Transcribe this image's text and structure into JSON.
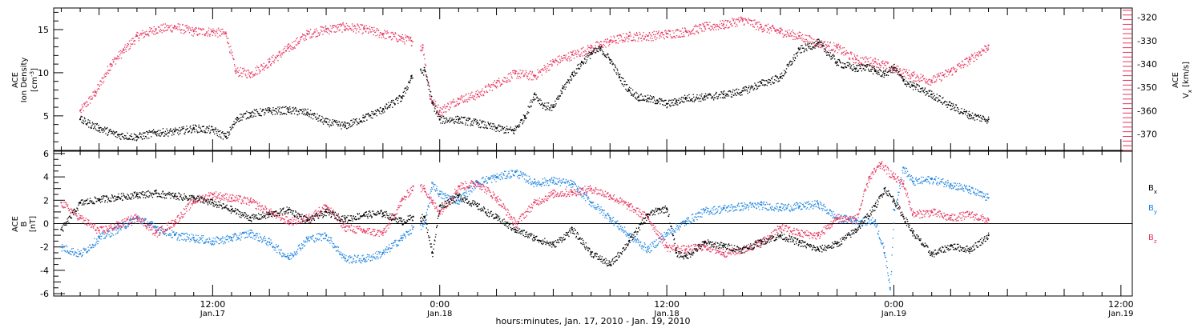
{
  "colors": {
    "black": "#000000",
    "red": "#e8345e",
    "blue": "#1f84e0",
    "axis": "#000000"
  },
  "chart_data": [
    {
      "type": "scatter",
      "panel": "top",
      "ylabel_left": [
        "ACE",
        "Ion Density",
        "[cm⁻³]"
      ],
      "ylabel_right": [
        "ACE",
        "Vₓ [km/s]"
      ],
      "yticks_left": [
        "5",
        "10",
        "15"
      ],
      "ylim_left": [
        1.0,
        17.5
      ],
      "yticks_right": [
        "-320",
        "-330",
        "-340",
        "-350",
        "-360",
        "-370"
      ],
      "ylim_right": [
        -377,
        -316
      ],
      "x_unit": "hours since 2010-01-17 00:00",
      "series": [
        {
          "color": "black",
          "axis": "left",
          "x": [
            5.0,
            6.0,
            7.0,
            8.0,
            9.0,
            10.0,
            11.0,
            12.0,
            12.7,
            13.3,
            14.0,
            15.0,
            16.0,
            17.0,
            18.0,
            19.0,
            20.0,
            21.0,
            22.0,
            22.5,
            23.2,
            23.6,
            24.0,
            25.0,
            26.0,
            27.0,
            27.9,
            28.5,
            29.0,
            29.5,
            30.0,
            30.5,
            31.0,
            31.5,
            32.0,
            32.5,
            33.0,
            33.5,
            34.0,
            34.5,
            35.0,
            35.5,
            36.0,
            36.5,
            37.0,
            38.0,
            39.0,
            40.0,
            41.0,
            42.0,
            43.0,
            44.0,
            45.0,
            46.0,
            46.5,
            47.0,
            47.5,
            48.0,
            48.5,
            49.0,
            50.0,
            51.0,
            52.0,
            53.0
          ],
          "y": [
            4.6,
            3.6,
            2.8,
            2.6,
            3.1,
            3.2,
            3.6,
            3.4,
            2.6,
            4.8,
            5.3,
            5.6,
            5.7,
            5.4,
            4.3,
            3.9,
            4.8,
            5.8,
            7.2,
            9.6,
            10.3,
            6.5,
            4.6,
            4.6,
            4.2,
            3.6,
            3.3,
            5.0,
            7.5,
            6.2,
            6.0,
            8.2,
            9.8,
            11.2,
            12.3,
            12.8,
            11.5,
            9.5,
            8.0,
            7.2,
            7.0,
            6.8,
            6.4,
            6.7,
            7.1,
            7.2,
            7.5,
            7.9,
            8.8,
            9.5,
            12.7,
            13.5,
            11.2,
            10.5,
            10.8,
            10.2,
            9.9,
            10.6,
            9.1,
            8.5,
            7.5,
            6.2,
            5.1,
            4.6
          ]
        },
        {
          "color": "red",
          "axis": "right",
          "x": [
            5.0,
            5.8,
            6.6,
            7.3,
            8.0,
            9.0,
            10.0,
            11.0,
            12.0,
            12.7,
            13.2,
            14.0,
            15.0,
            16.0,
            17.0,
            18.0,
            19.0,
            20.0,
            21.0,
            22.0,
            22.5,
            23.1,
            23.5,
            24.0,
            25.0,
            26.0,
            27.0,
            28.0,
            29.0,
            30.0,
            31.0,
            32.0,
            33.0,
            34.0,
            35.0,
            36.0,
            37.0,
            38.0,
            39.0,
            40.0,
            41.0,
            42.0,
            43.0,
            44.0,
            45.0,
            46.0,
            47.0,
            48.0,
            49.0,
            50.0,
            51.0,
            52.0,
            53.0
          ],
          "y": [
            -360,
            -352,
            -340,
            -334,
            -328,
            -325,
            -324,
            -326,
            -326,
            -327,
            -343,
            -344,
            -339,
            -333,
            -327,
            -325,
            -324,
            -325,
            -327,
            -329,
            -330,
            -333,
            -355,
            -360,
            -355,
            -353,
            -348,
            -344,
            -345,
            -339,
            -336,
            -333,
            -330,
            -328,
            -328,
            -327,
            -326,
            -324,
            -323,
            -321,
            -324,
            -326,
            -328,
            -331,
            -333,
            -338,
            -339,
            -342,
            -345,
            -347,
            -343,
            -338,
            -332
          ]
        }
      ]
    },
    {
      "type": "scatter",
      "panel": "bottom",
      "ylabel_left": [
        "ACE",
        "B",
        "[nT]"
      ],
      "yticks_left": [
        "-6",
        "-4",
        "-2",
        "0",
        "2",
        "4",
        "6"
      ],
      "ylim_left": [
        -6.2,
        6.2
      ],
      "zero_line": true,
      "xticks": [
        {
          "t": 12,
          "time": "12:00",
          "date": "Jan.17"
        },
        {
          "t": 24,
          "time": "0:00",
          "date": "Jan.18"
        },
        {
          "t": 36,
          "time": "12:00",
          "date": "Jan.18"
        },
        {
          "t": 48,
          "time": "0:00",
          "date": "Jan.19"
        },
        {
          "t": 60,
          "time": "12:00",
          "date": "Jan.19"
        }
      ],
      "xlim": [
        3.6,
        60.6
      ],
      "xlabel": "hours:minutes, Jan. 17, 2010 - Jan. 19, 2010",
      "series": [
        {
          "name": "Bₓ",
          "color": "black",
          "x": [
            4.0,
            5.0,
            6.0,
            7.0,
            8.0,
            9.0,
            10.0,
            11.0,
            12.0,
            13.0,
            14.0,
            15.0,
            16.0,
            17.0,
            18.0,
            19.0,
            20.0,
            21.0,
            22.0,
            22.6,
            23.2,
            23.6,
            24.0,
            25.0,
            26.0,
            27.0,
            28.0,
            29.0,
            30.0,
            31.0,
            32.0,
            33.0,
            34.0,
            35.0,
            35.6,
            36.0,
            36.5,
            37.0,
            38.0,
            39.0,
            40.0,
            41.0,
            42.0,
            43.0,
            44.0,
            45.0,
            46.0,
            47.0,
            47.5,
            48.0,
            48.5,
            49.0,
            50.0,
            51.0,
            52.0,
            53.0
          ],
          "y": [
            -0.5,
            1.8,
            2.1,
            2.3,
            2.5,
            2.6,
            2.4,
            2.2,
            1.8,
            1.2,
            0.5,
            0.8,
            1.2,
            0.3,
            1.0,
            0.4,
            0.8,
            0.9,
            0.2,
            0.6,
            0.5,
            -2.5,
            1.5,
            2.4,
            1.5,
            0.5,
            -0.5,
            -1.2,
            -1.8,
            -0.5,
            -2.5,
            -3.5,
            -1.5,
            0.8,
            1.2,
            1.3,
            -2.5,
            -2.8,
            -1.6,
            -1.9,
            -2.2,
            -1.5,
            -1.0,
            -1.6,
            -2.2,
            -1.7,
            -0.5,
            1.5,
            3.0,
            2.0,
            0.6,
            -0.8,
            -2.6,
            -1.9,
            -2.2,
            -1.0
          ]
        },
        {
          "name": "Bᵧ",
          "color": "blue",
          "x": [
            4.0,
            5.0,
            6.0,
            7.0,
            8.0,
            9.0,
            10.0,
            11.0,
            12.0,
            13.0,
            14.0,
            15.0,
            16.0,
            17.0,
            18.0,
            19.0,
            20.0,
            21.0,
            22.0,
            22.6,
            23.2,
            23.6,
            24.0,
            25.0,
            26.0,
            27.0,
            28.0,
            29.0,
            30.0,
            31.0,
            32.0,
            33.0,
            34.0,
            35.0,
            36.0,
            37.0,
            38.0,
            39.0,
            40.0,
            41.0,
            42.0,
            43.0,
            44.0,
            45.0,
            46.0,
            47.0,
            47.5,
            47.8,
            48.0,
            48.5,
            49.0,
            50.0,
            51.0,
            52.0,
            53.0
          ],
          "y": [
            -2.0,
            -2.6,
            -1.2,
            -0.4,
            0.5,
            -0.3,
            -1.0,
            -1.2,
            -1.5,
            -1.2,
            -0.8,
            -1.6,
            -2.9,
            -1.3,
            -1.0,
            -3.0,
            -3.0,
            -2.5,
            -1.2,
            -0.3,
            0.0,
            3.5,
            2.5,
            2.0,
            3.6,
            4.0,
            4.4,
            3.5,
            3.7,
            3.4,
            1.8,
            0.5,
            -1.0,
            -2.2,
            -0.8,
            0.2,
            1.1,
            1.3,
            1.5,
            1.6,
            1.4,
            1.5,
            1.7,
            0.5,
            0.3,
            0.2,
            -2.5,
            -5.5,
            1.2,
            4.8,
            3.6,
            3.8,
            3.4,
            2.9,
            2.2
          ]
        },
        {
          "name": "Bₓz",
          "label": "B_z",
          "color": "red",
          "x": [
            4.0,
            5.0,
            6.0,
            7.0,
            8.0,
            9.0,
            10.0,
            11.0,
            12.0,
            13.0,
            14.0,
            15.0,
            16.0,
            17.0,
            18.0,
            19.0,
            20.0,
            21.0,
            22.0,
            22.6,
            23.2,
            23.6,
            24.0,
            25.0,
            26.0,
            27.0,
            28.0,
            29.0,
            30.0,
            31.0,
            32.0,
            33.0,
            34.0,
            35.0,
            36.0,
            37.0,
            38.0,
            39.0,
            40.0,
            41.0,
            42.0,
            43.0,
            44.0,
            45.0,
            46.0,
            46.7,
            47.3,
            48.0,
            48.5,
            49.0,
            50.0,
            51.0,
            52.0,
            53.0
          ],
          "y": [
            1.8,
            0.5,
            -0.6,
            -0.1,
            0.6,
            -0.8,
            0.2,
            2.0,
            2.5,
            2.2,
            1.9,
            1.0,
            0.2,
            0.5,
            1.5,
            -0.3,
            -0.6,
            -0.8,
            2.0,
            3.2,
            3.0,
            1.8,
            1.0,
            3.2,
            3.5,
            2.2,
            0.0,
            1.8,
            2.6,
            2.7,
            3.0,
            2.4,
            1.5,
            0.5,
            -2.0,
            -2.2,
            -1.9,
            -2.5,
            -2.2,
            -1.6,
            -0.3,
            -0.8,
            -1.0,
            0.5,
            0.4,
            4.0,
            5.1,
            4.0,
            3.4,
            0.8,
            1.0,
            0.5,
            0.8,
            0.3
          ]
        }
      ]
    }
  ],
  "legend": [
    {
      "label": "B",
      "sub": "x",
      "color": "black"
    },
    {
      "label": "B",
      "sub": "y",
      "color": "blue"
    },
    {
      "label": "B",
      "sub": "z",
      "color": "red"
    }
  ],
  "top_ylabel": {
    "l1": "ACE",
    "l2": "Ion Density",
    "l3": "[cm",
    "l3sup": "-3",
    "l3end": "]"
  },
  "top_ylabel_right": {
    "l1": "ACE",
    "l2": "V",
    "l2sub": "x",
    "l3": " [km/s]"
  },
  "bottom_ylabel": {
    "l1": "ACE",
    "l2": "B",
    "l3": "[nT]"
  }
}
